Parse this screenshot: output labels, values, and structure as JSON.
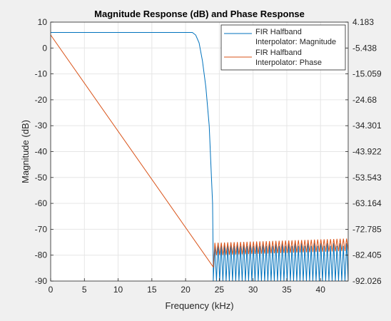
{
  "chart_data": {
    "type": "line",
    "title": "Magnitude Response (dB) and Phase Response",
    "xlabel": "Frequency (kHz)",
    "ylabel": "Magnitude (dB)",
    "xlim": [
      0,
      44.1
    ],
    "ylim": [
      -90,
      10
    ],
    "ylim_right": [
      -92.026,
      4.183
    ],
    "grid": true,
    "legend_position": "top-right",
    "x_ticks": [
      "0",
      "5",
      "10",
      "15",
      "20",
      "25",
      "30",
      "35",
      "40"
    ],
    "y_ticks": [
      "10",
      "0",
      "-10",
      "-20",
      "-30",
      "-40",
      "-50",
      "-60",
      "-70",
      "-80",
      "-90"
    ],
    "y_ticks_right": [
      "4.183",
      "-5.438",
      "-15.059",
      "-24.68",
      "-34.301",
      "-43.922",
      "-53.543",
      "-63.164",
      "-72.785",
      "-82.405",
      "-92.026"
    ],
    "series": [
      {
        "name": "FIR Halfband Interpolator: Magnitude",
        "legend_lines": [
          "FIR Halfband",
          "Interpolator: Magnitude"
        ],
        "color": "#0072BD",
        "axis": "left",
        "x": [
          0,
          20,
          21,
          21.5,
          22,
          22.5,
          23,
          23.5,
          24,
          24.1
        ],
        "values": [
          6,
          6,
          6,
          5,
          2,
          -5,
          -15,
          -30,
          -60,
          -85
        ],
        "stopband": {
          "x_start": 24.1,
          "x_end": 44.1,
          "lobes": 42,
          "peak": -76,
          "floor": -90
        }
      },
      {
        "name": "FIR Halfband Interpolator: Phase",
        "legend_lines": [
          "FIR Halfband",
          "Interpolator: Phase"
        ],
        "color": "#D95319",
        "axis": "right",
        "x": [
          0,
          24.1
        ],
        "values": [
          -0.6,
          -86.8
        ],
        "stopband": {
          "x_start": 24.1,
          "x_end": 44.1,
          "lobes": 42,
          "base": -82.4,
          "top": -77.8,
          "rise": 1.6
        }
      }
    ]
  }
}
